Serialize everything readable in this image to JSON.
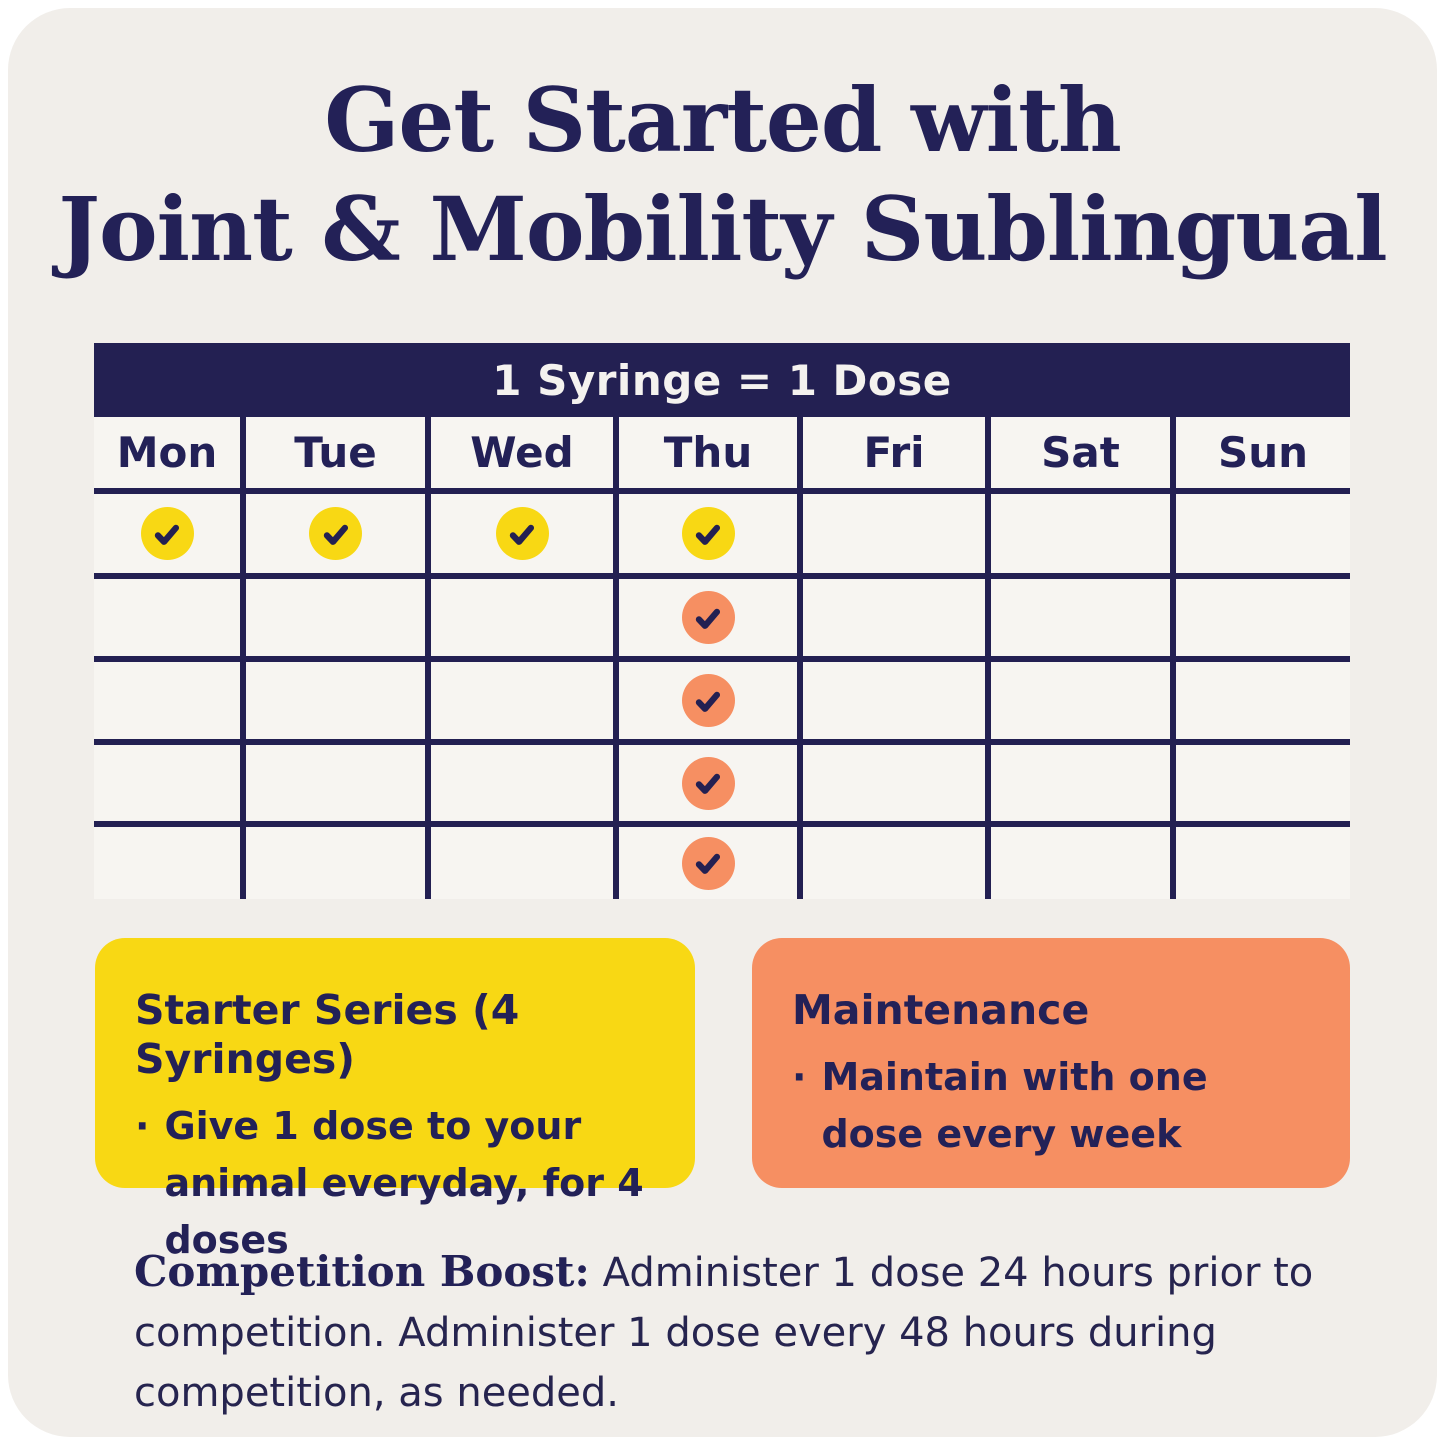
{
  "title": {
    "line1": "Get Started with",
    "line2": "Joint & Mobility Sublingual"
  },
  "table": {
    "header": "1 Syringe = 1 Dose",
    "days": [
      "Mon",
      "Tue",
      "Wed",
      "Thu",
      "Fri",
      "Sat",
      "Sun"
    ],
    "rows": [
      [
        "yellow",
        "yellow",
        "yellow",
        "yellow",
        null,
        null,
        null
      ],
      [
        null,
        null,
        null,
        "orange",
        null,
        null,
        null
      ],
      [
        null,
        null,
        null,
        "orange",
        null,
        null,
        null
      ],
      [
        null,
        null,
        null,
        "orange",
        null,
        null,
        null
      ],
      [
        null,
        null,
        null,
        "orange",
        null,
        null,
        null
      ]
    ]
  },
  "legend": {
    "bullet_glyph": "·",
    "starter": {
      "heading": "Starter Series (4 Syringes)",
      "bullet": "Give 1 dose to your animal everyday, for 4 doses"
    },
    "maintenance": {
      "heading": "Maintenance",
      "bullet": "Maintain with one dose every week"
    }
  },
  "footnote": {
    "bold": "Competition Boost:",
    "text": "Administer 1 dose 24 hours prior to competition. Administer 1 dose every 48 hours during competition, as needed."
  },
  "colors": {
    "navy": "#232052",
    "yellow": "#f8d814",
    "orange": "#f68f62",
    "card_bg": "#f1eeea",
    "cell_bg": "#f7f5f1",
    "header_text": "#f4f2ef"
  }
}
